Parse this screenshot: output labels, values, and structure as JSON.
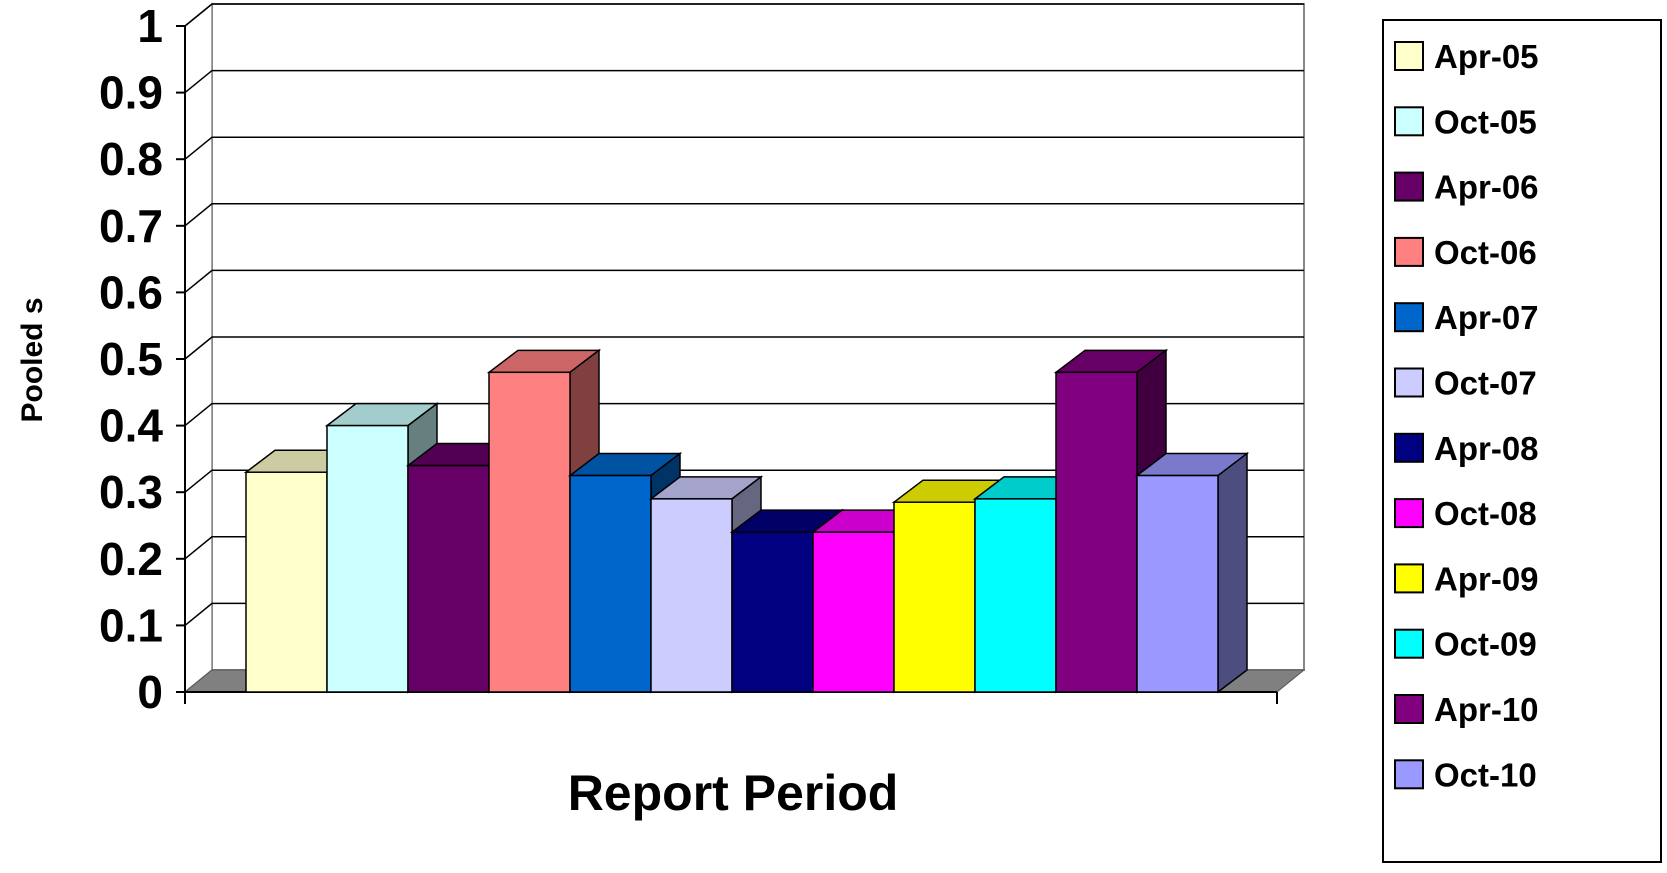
{
  "chart_data": {
    "type": "bar",
    "style": "3d-clustered-column",
    "title": "",
    "xlabel": "Report Period",
    "ylabel": "Pooled s",
    "ylim": [
      0,
      1
    ],
    "yticks": [
      "0",
      "0.1",
      "0.2",
      "0.3",
      "0.4",
      "0.5",
      "0.6",
      "0.7",
      "0.8",
      "0.9",
      "1"
    ],
    "grid": true,
    "legend_position": "right",
    "series": [
      {
        "name": "Apr-05",
        "value": 0.33,
        "color": "#FFFFCC"
      },
      {
        "name": "Oct-05",
        "value": 0.4,
        "color": "#CCFFFF"
      },
      {
        "name": "Apr-06",
        "value": 0.34,
        "color": "#660066"
      },
      {
        "name": "Oct-06",
        "value": 0.48,
        "color": "#FF8080"
      },
      {
        "name": "Apr-07",
        "value": 0.325,
        "color": "#0066CC"
      },
      {
        "name": "Oct-07",
        "value": 0.29,
        "color": "#CCCCFF"
      },
      {
        "name": "Apr-08",
        "value": 0.24,
        "color": "#000080"
      },
      {
        "name": "Oct-08",
        "value": 0.24,
        "color": "#FF00FF"
      },
      {
        "name": "Apr-09",
        "value": 0.285,
        "color": "#FFFF00"
      },
      {
        "name": "Oct-09",
        "value": 0.29,
        "color": "#00FFFF"
      },
      {
        "name": "Apr-10",
        "value": 0.48,
        "color": "#800080"
      },
      {
        "name": "Oct-10",
        "value": 0.325,
        "color": "#9999FF"
      }
    ]
  }
}
